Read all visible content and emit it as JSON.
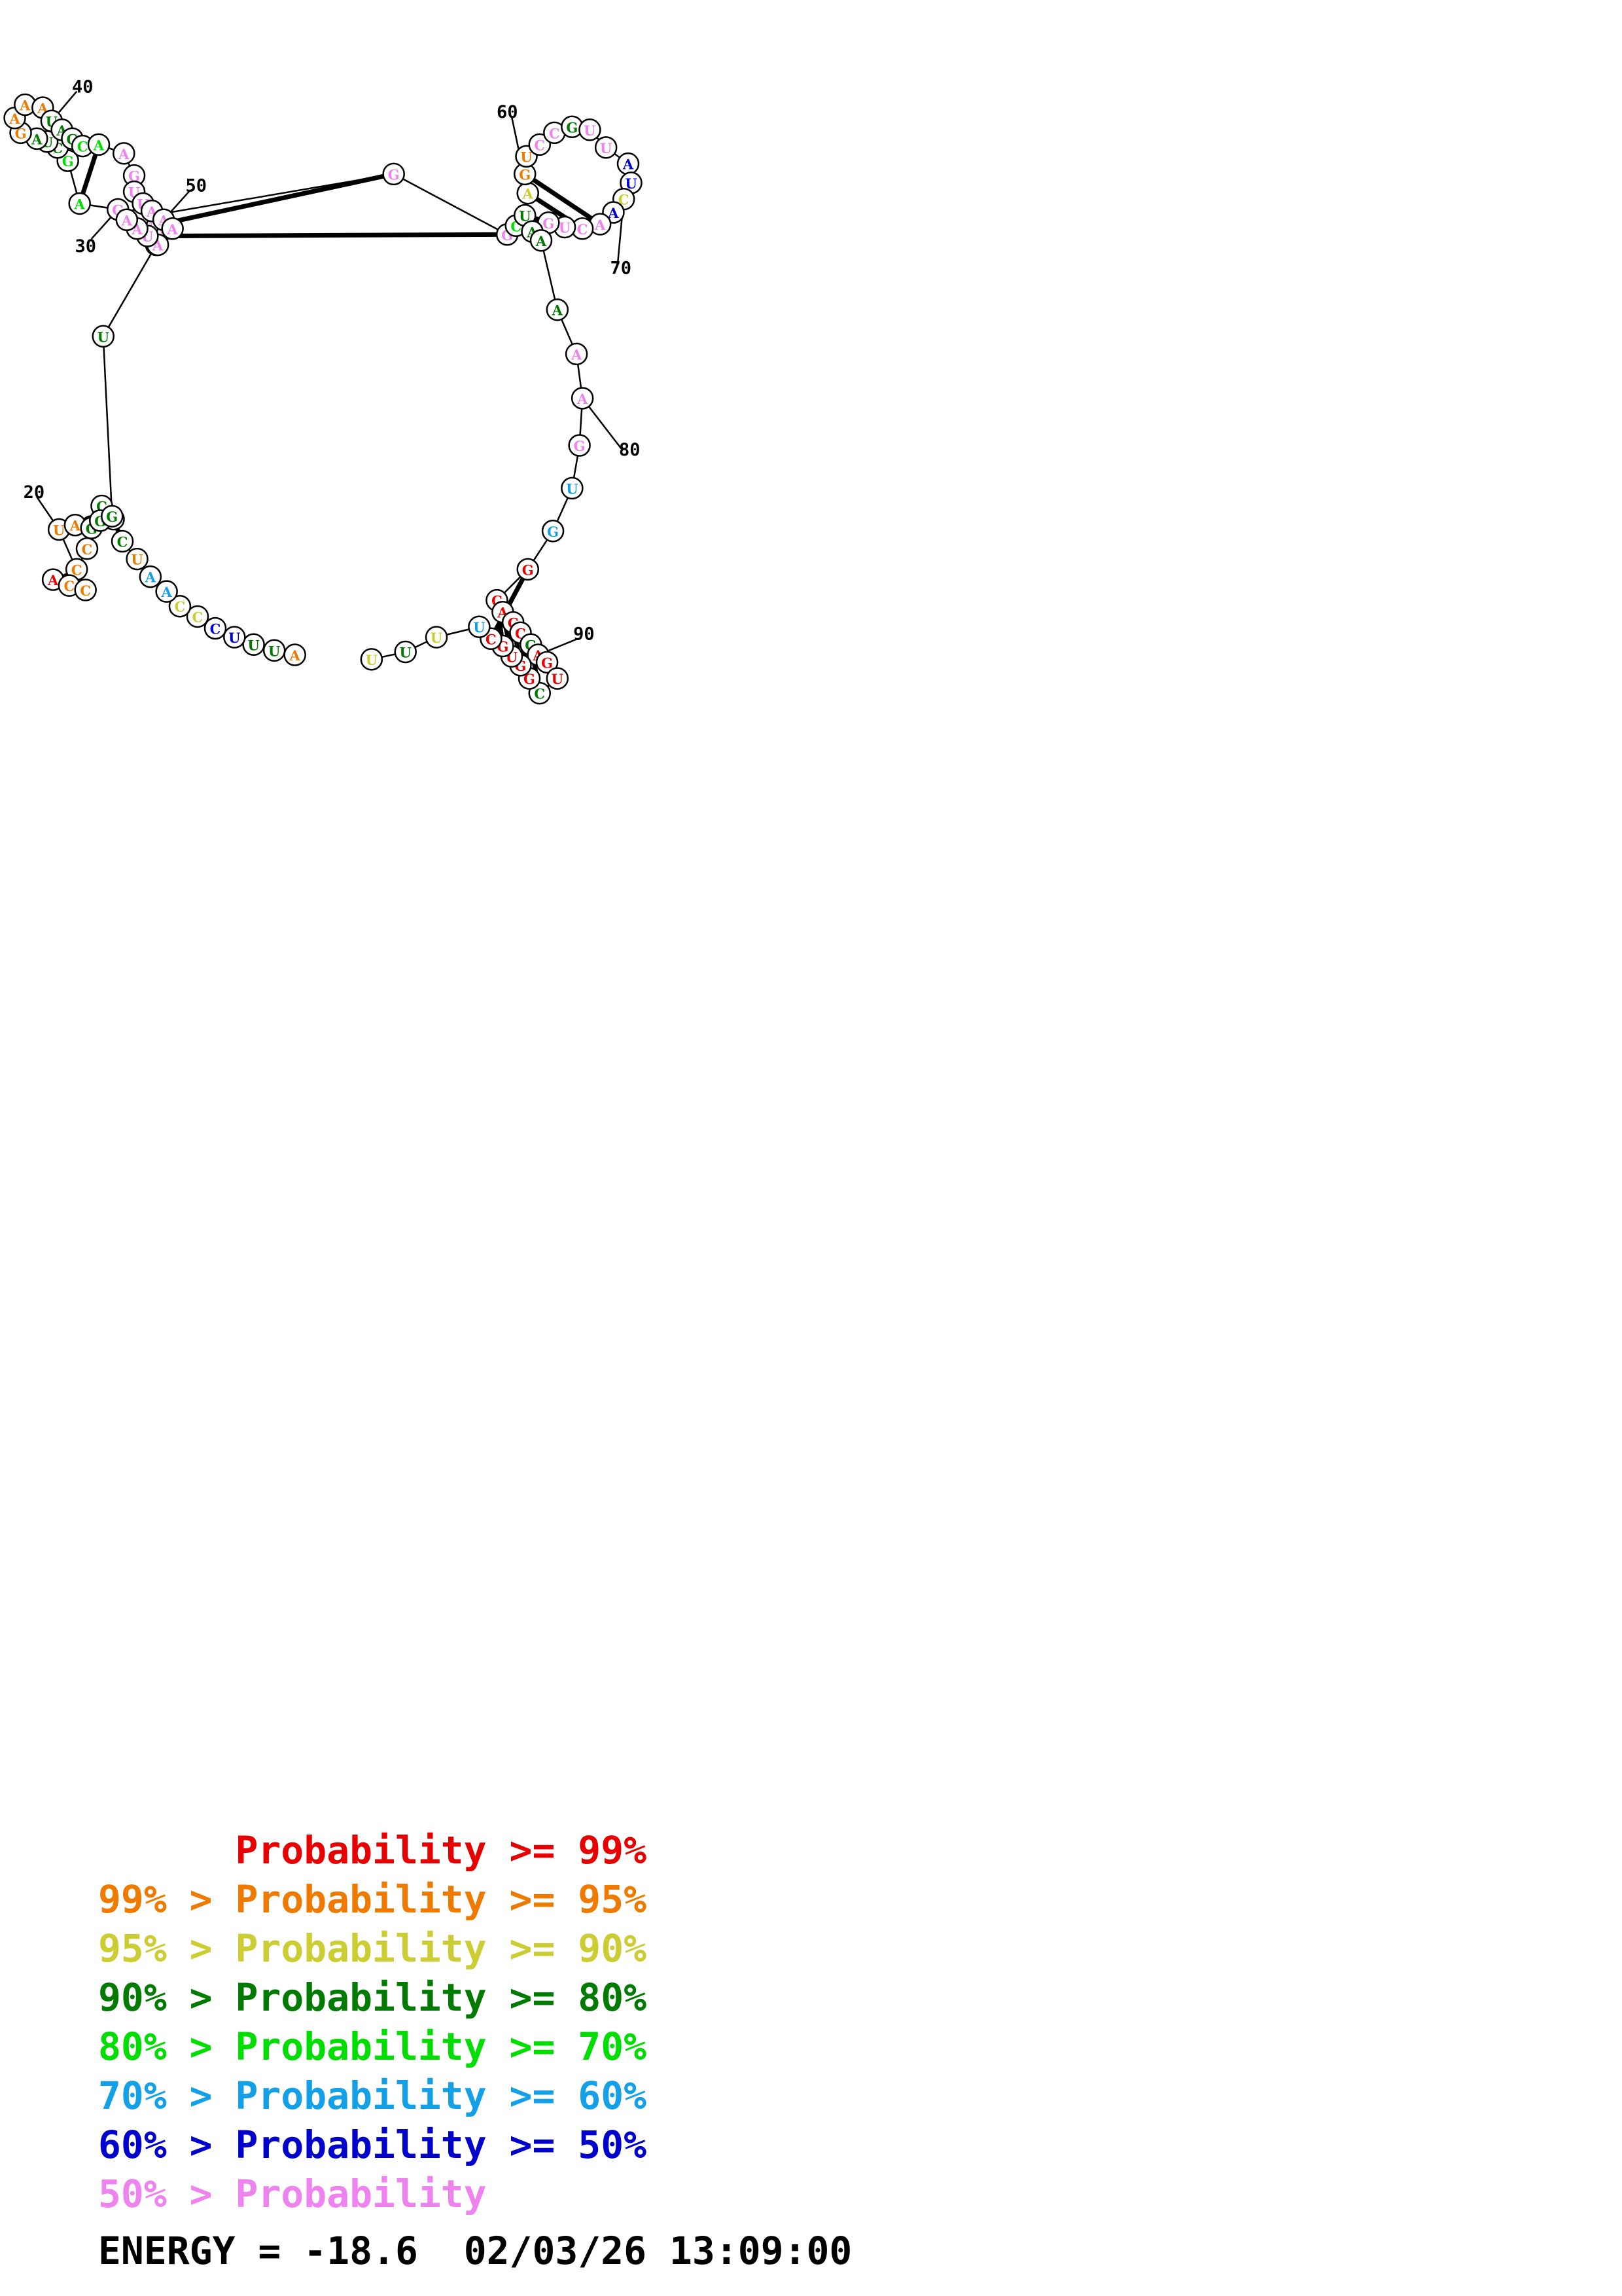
{
  "colors": {
    "p99": "#e60000",
    "p95": "#ee7a00",
    "p90": "#cccc33",
    "p80": "#007a00",
    "p70": "#00dd00",
    "p60": "#14a0e6",
    "p50": "#0000cc",
    "plow": "#ee82ee"
  },
  "sequence": [
    {
      "n": 1,
      "base": "A",
      "color": "p95"
    },
    {
      "n": 2,
      "base": "U",
      "color": "p80"
    },
    {
      "n": 3,
      "base": "U",
      "color": "p80"
    },
    {
      "n": 4,
      "base": "U",
      "color": "p50"
    },
    {
      "n": 5,
      "base": "C",
      "color": "p50"
    },
    {
      "n": 6,
      "base": "C",
      "color": "p90"
    },
    {
      "n": 7,
      "base": "C",
      "color": "p90"
    },
    {
      "n": 8,
      "base": "A",
      "color": "p60"
    },
    {
      "n": 9,
      "base": "A",
      "color": "p60"
    },
    {
      "n": 10,
      "base": "U",
      "color": "p95"
    },
    {
      "n": 11,
      "base": "C",
      "color": "p80"
    },
    {
      "n": 12,
      "base": "C",
      "color": "p80"
    },
    {
      "n": 13,
      "base": "C",
      "color": "p80"
    },
    {
      "n": 14,
      "base": "A",
      "color": "p95"
    },
    {
      "n": 15,
      "base": "C",
      "color": "p95"
    },
    {
      "n": 16,
      "base": "C",
      "color": "p95"
    },
    {
      "n": 17,
      "base": "A",
      "color": "p99"
    },
    {
      "n": 18,
      "base": "C",
      "color": "p95"
    },
    {
      "n": 19,
      "base": "C",
      "color": "p95"
    },
    {
      "n": 20,
      "base": "U",
      "color": "p95"
    },
    {
      "n": 21,
      "base": "A",
      "color": "p95"
    },
    {
      "n": 22,
      "base": "G",
      "color": "p80"
    },
    {
      "n": 23,
      "base": "G",
      "color": "p80"
    },
    {
      "n": 24,
      "base": "G",
      "color": "p80"
    },
    {
      "n": 25,
      "base": "U",
      "color": "p80"
    },
    {
      "n": 26,
      "base": "U",
      "color": "plow"
    },
    {
      "n": 27,
      "base": "U",
      "color": "plow"
    },
    {
      "n": 28,
      "base": "U",
      "color": "plow"
    },
    {
      "n": 29,
      "base": "A",
      "color": "plow"
    },
    {
      "n": 30,
      "base": "G",
      "color": "plow"
    },
    {
      "n": 31,
      "base": "A",
      "color": "p70"
    },
    {
      "n": 32,
      "base": "G",
      "color": "p70"
    },
    {
      "n": 33,
      "base": "C",
      "color": "p80"
    },
    {
      "n": 34,
      "base": "U",
      "color": "p80"
    },
    {
      "n": 35,
      "base": "A",
      "color": "p80"
    },
    {
      "n": 36,
      "base": "G",
      "color": "p95"
    },
    {
      "n": 37,
      "base": "A",
      "color": "p95"
    },
    {
      "n": 38,
      "base": "A",
      "color": "p95"
    },
    {
      "n": 39,
      "base": "A",
      "color": "p95"
    },
    {
      "n": 40,
      "base": "U",
      "color": "p80"
    },
    {
      "n": 41,
      "base": "A",
      "color": "p80"
    },
    {
      "n": 42,
      "base": "G",
      "color": "p80"
    },
    {
      "n": 43,
      "base": "C",
      "color": "p70"
    },
    {
      "n": 44,
      "base": "A",
      "color": "p70"
    },
    {
      "n": 45,
      "base": "A",
      "color": "plow"
    },
    {
      "n": 46,
      "base": "G",
      "color": "plow"
    },
    {
      "n": 47,
      "base": "U",
      "color": "plow"
    },
    {
      "n": 48,
      "base": "U",
      "color": "plow"
    },
    {
      "n": 49,
      "base": "A",
      "color": "plow"
    },
    {
      "n": 50,
      "base": "A",
      "color": "plow"
    },
    {
      "n": 51,
      "base": "A",
      "color": "plow"
    },
    {
      "n": 52,
      "base": "A",
      "color": "plow"
    },
    {
      "n": 53,
      "base": "U",
      "color": "plow"
    },
    {
      "n": 54,
      "base": "A",
      "color": "plow"
    },
    {
      "n": 55,
      "base": "A",
      "color": "plow"
    },
    {
      "n": 56,
      "base": "G",
      "color": "plow"
    },
    {
      "n": 57,
      "base": "G",
      "color": "plow"
    },
    {
      "n": 58,
      "base": "C",
      "color": "p70"
    },
    {
      "n": 59,
      "base": "U",
      "color": "p80"
    },
    {
      "n": 60,
      "base": "A",
      "color": "p90"
    },
    {
      "n": 61,
      "base": "G",
      "color": "p95"
    },
    {
      "n": 62,
      "base": "U",
      "color": "p95"
    },
    {
      "n": 63,
      "base": "C",
      "color": "plow"
    },
    {
      "n": 64,
      "base": "C",
      "color": "plow"
    },
    {
      "n": 65,
      "base": "G",
      "color": "p80"
    },
    {
      "n": 66,
      "base": "U",
      "color": "plow"
    },
    {
      "n": 67,
      "base": "U",
      "color": "plow"
    },
    {
      "n": 68,
      "base": "A",
      "color": "p50"
    },
    {
      "n": 69,
      "base": "U",
      "color": "p50"
    },
    {
      "n": 70,
      "base": "C",
      "color": "p90"
    },
    {
      "n": 71,
      "base": "A",
      "color": "p50"
    },
    {
      "n": 72,
      "base": "A",
      "color": "plow"
    },
    {
      "n": 73,
      "base": "C",
      "color": "plow"
    },
    {
      "n": 74,
      "base": "U",
      "color": "plow"
    },
    {
      "n": 75,
      "base": "G",
      "color": "plow"
    },
    {
      "n": 76,
      "base": "A",
      "color": "p80"
    },
    {
      "n": 77,
      "base": "A",
      "color": "p80"
    },
    {
      "n": 78,
      "base": "A",
      "color": "p80"
    },
    {
      "n": 79,
      "base": "A",
      "color": "plow"
    },
    {
      "n": 80,
      "base": "A",
      "color": "plow"
    },
    {
      "n": 81,
      "base": "G",
      "color": "plow"
    },
    {
      "n": 82,
      "base": "U",
      "color": "p60"
    },
    {
      "n": 83,
      "base": "G",
      "color": "p60"
    },
    {
      "n": 84,
      "base": "G",
      "color": "p99"
    },
    {
      "n": 85,
      "base": "C",
      "color": "p99"
    },
    {
      "n": 86,
      "base": "A",
      "color": "p99"
    },
    {
      "n": 87,
      "base": "C",
      "color": "p99"
    },
    {
      "n": 88,
      "base": "C",
      "color": "p99"
    },
    {
      "n": 89,
      "base": "G",
      "color": "p80"
    },
    {
      "n": 90,
      "base": "A",
      "color": "p99"
    },
    {
      "n": 91,
      "base": "G",
      "color": "p99"
    },
    {
      "n": 92,
      "base": "U",
      "color": "p99"
    },
    {
      "n": 93,
      "base": "C",
      "color": "p80"
    },
    {
      "n": 94,
      "base": "G",
      "color": "p99"
    },
    {
      "n": 95,
      "base": "G",
      "color": "p99"
    },
    {
      "n": 96,
      "base": "U",
      "color": "p99"
    },
    {
      "n": 97,
      "base": "G",
      "color": "p99"
    },
    {
      "n": 98,
      "base": "C",
      "color": "p99"
    },
    {
      "n": 99,
      "base": "U",
      "color": "p60"
    },
    {
      "n": 100,
      "base": "U",
      "color": "p90"
    },
    {
      "n": 101,
      "base": "U",
      "color": "p80"
    },
    {
      "n": 102,
      "base": "U",
      "color": "p90"
    }
  ],
  "pairs": [
    [
      11,
      24
    ],
    [
      12,
      23
    ],
    [
      13,
      22
    ],
    [
      27,
      57
    ],
    [
      28,
      56
    ],
    [
      29,
      55
    ],
    [
      31,
      44
    ],
    [
      32,
      43
    ],
    [
      33,
      42
    ],
    [
      34,
      41
    ],
    [
      58,
      75
    ],
    [
      59,
      74
    ],
    [
      60,
      73
    ],
    [
      61,
      72
    ],
    [
      84,
      98
    ],
    [
      85,
      97
    ],
    [
      86,
      96
    ],
    [
      87,
      95
    ],
    [
      88,
      94
    ],
    [
      89,
      93
    ]
  ],
  "position_labels": [
    "20",
    "30",
    "40",
    "50",
    "60",
    "70",
    "80",
    "90"
  ],
  "legend": [
    {
      "prefix": "",
      "text": "Probability >= 99%",
      "color": "p99"
    },
    {
      "prefix": "99% > ",
      "text": "Probability >= 95%",
      "color": "p95"
    },
    {
      "prefix": "95% > ",
      "text": "Probability >= 90%",
      "color": "p90"
    },
    {
      "prefix": "90% > ",
      "text": "Probability >= 80%",
      "color": "p80"
    },
    {
      "prefix": "80% > ",
      "text": "Probability >= 70%",
      "color": "p70"
    },
    {
      "prefix": "70% > ",
      "text": "Probability >= 60%",
      "color": "p60"
    },
    {
      "prefix": "60% > ",
      "text": "Probability >= 50%",
      "color": "p50"
    },
    {
      "prefix": "50% > ",
      "text": "Probability",
      "color": "plow"
    }
  ],
  "footer": {
    "energy": "ENERGY = -18.6",
    "timestamp": "02/03/26 13:09:00"
  }
}
